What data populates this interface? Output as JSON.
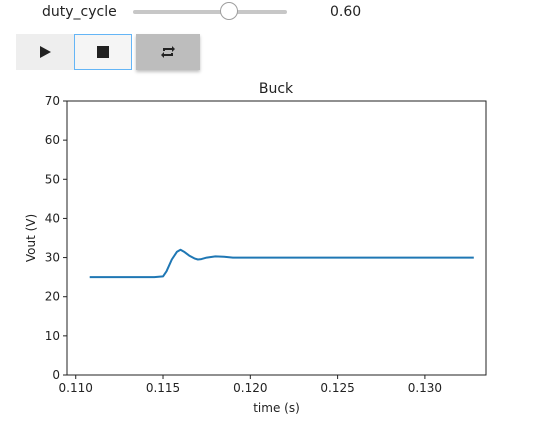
{
  "widgets": {
    "slider": {
      "label": "duty_cycle",
      "value_text": "0.60",
      "value": 0.6,
      "min": 0.0,
      "max": 1.0
    },
    "play_controls": {
      "play_icon": "play-icon",
      "stop_icon": "stop-icon",
      "repeat_icon": "repeat-icon"
    }
  },
  "chart_data": {
    "type": "line",
    "title": "Buck",
    "xlabel": "time (s)",
    "ylabel": "Vout (V)",
    "xlim": [
      0.1095,
      0.1335
    ],
    "ylim": [
      0,
      70
    ],
    "xticks": [
      "0.110",
      "0.115",
      "0.120",
      "0.125",
      "0.130"
    ],
    "yticks": [
      "0",
      "10",
      "20",
      "30",
      "40",
      "50",
      "60",
      "70"
    ],
    "grid": false,
    "series": [
      {
        "color": "#1f77b4",
        "x": [
          0.1108,
          0.112,
          0.113,
          0.114,
          0.1145,
          0.115,
          0.1152,
          0.1155,
          0.1158,
          0.116,
          0.1162,
          0.1165,
          0.1168,
          0.117,
          0.1172,
          0.1175,
          0.118,
          0.1185,
          0.119,
          0.12,
          0.122,
          0.125,
          0.128,
          0.131,
          0.1328
        ],
        "y": [
          25.0,
          25.0,
          25.0,
          25.0,
          25.0,
          25.2,
          26.5,
          29.5,
          31.5,
          32.0,
          31.5,
          30.5,
          29.8,
          29.5,
          29.6,
          30.0,
          30.3,
          30.2,
          30.0,
          30.0,
          30.0,
          30.0,
          30.0,
          30.0,
          30.0
        ]
      }
    ]
  }
}
